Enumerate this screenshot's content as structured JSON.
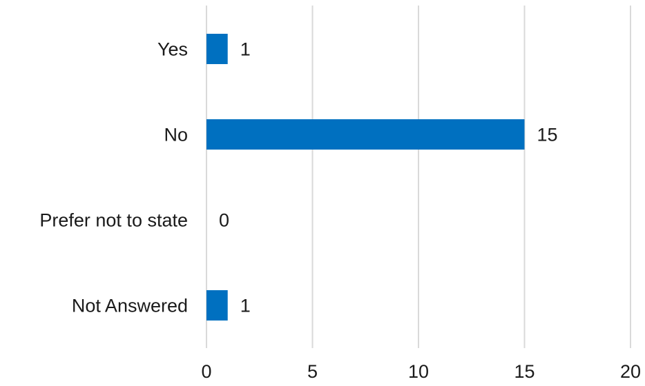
{
  "chart_data": {
    "type": "bar",
    "orientation": "horizontal",
    "title": "",
    "xlabel": "",
    "ylabel": "",
    "categories": [
      "Yes",
      "No",
      "Prefer not to state",
      "Not Answered"
    ],
    "values": [
      1,
      15,
      0,
      1
    ],
    "data_labels": [
      "1",
      "15",
      "0",
      "1"
    ],
    "xlim": [
      0,
      20
    ],
    "x_ticks": [
      0,
      5,
      10,
      15,
      20
    ],
    "x_tick_labels": [
      "0",
      "5",
      "10",
      "15",
      "20"
    ],
    "grid": "vertical",
    "legend": "none",
    "bar_color": "#0070C0",
    "grid_color": "#D9D9D9"
  }
}
